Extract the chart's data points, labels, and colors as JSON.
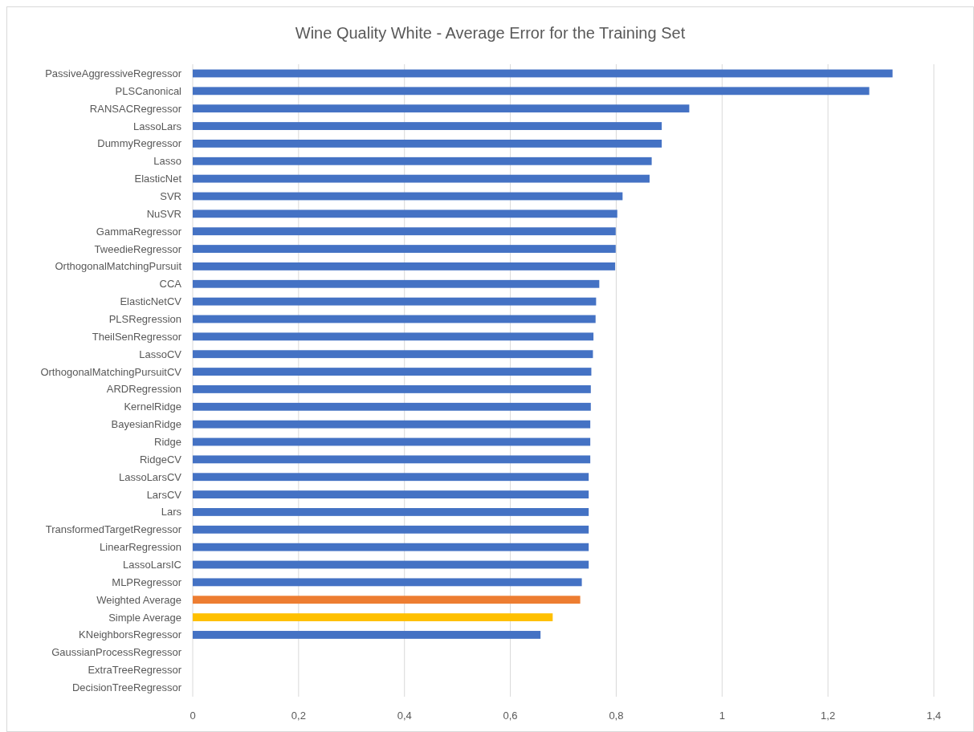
{
  "chart_data": {
    "type": "bar",
    "orientation": "horizontal",
    "title": "Wine Quality White - Average Error for the Training Set",
    "categories": [
      "PassiveAggressiveRegressor",
      "PLSCanonical",
      "RANSACRegressor",
      "LassoLars",
      "DummyRegressor",
      "Lasso",
      "ElasticNet",
      "SVR",
      "NuSVR",
      "GammaRegressor",
      "TweedieRegressor",
      "OrthogonalMatchingPursuit",
      "CCA",
      "ElasticNetCV",
      "PLSRegression",
      "TheilSenRegressor",
      "LassoCV",
      "OrthogonalMatchingPursuitCV",
      "ARDRegression",
      "KernelRidge",
      "BayesianRidge",
      "Ridge",
      "RidgeCV",
      "LassoLarsCV",
      "LarsCV",
      "Lars",
      "TransformedTargetRegressor",
      "LinearRegression",
      "LassoLarsIC",
      "MLPRegressor",
      "Weighted Average",
      "Simple Average",
      "KNeighborsRegressor",
      "GaussianProcessRegressor",
      "ExtraTreeRegressor",
      "DecisionTreeRegressor"
    ],
    "values": [
      1.322,
      1.278,
      0.938,
      0.886,
      0.886,
      0.867,
      0.863,
      0.812,
      0.802,
      0.799,
      0.799,
      0.798,
      0.768,
      0.762,
      0.761,
      0.757,
      0.756,
      0.753,
      0.752,
      0.752,
      0.751,
      0.751,
      0.751,
      0.748,
      0.748,
      0.748,
      0.748,
      0.748,
      0.748,
      0.735,
      0.732,
      0.68,
      0.657,
      0,
      0,
      0
    ],
    "colors": [
      "#4472c4",
      "#4472c4",
      "#4472c4",
      "#4472c4",
      "#4472c4",
      "#4472c4",
      "#4472c4",
      "#4472c4",
      "#4472c4",
      "#4472c4",
      "#4472c4",
      "#4472c4",
      "#4472c4",
      "#4472c4",
      "#4472c4",
      "#4472c4",
      "#4472c4",
      "#4472c4",
      "#4472c4",
      "#4472c4",
      "#4472c4",
      "#4472c4",
      "#4472c4",
      "#4472c4",
      "#4472c4",
      "#4472c4",
      "#4472c4",
      "#4472c4",
      "#4472c4",
      "#4472c4",
      "#ed7d31",
      "#ffc000",
      "#4472c4",
      "#4472c4",
      "#4472c4",
      "#4472c4"
    ],
    "xlim": [
      0,
      1.4
    ],
    "xticks": [
      0,
      {
        "value": 0.2,
        "label": "0,2"
      },
      {
        "value": 0.4,
        "label": "0,4"
      },
      {
        "value": 0.6,
        "label": "0,6"
      },
      {
        "value": 0.8,
        "label": "0,8"
      },
      1,
      {
        "value": 1.2,
        "label": "1,2"
      },
      {
        "value": 1.4,
        "label": "1,4"
      }
    ],
    "grid": "x"
  }
}
